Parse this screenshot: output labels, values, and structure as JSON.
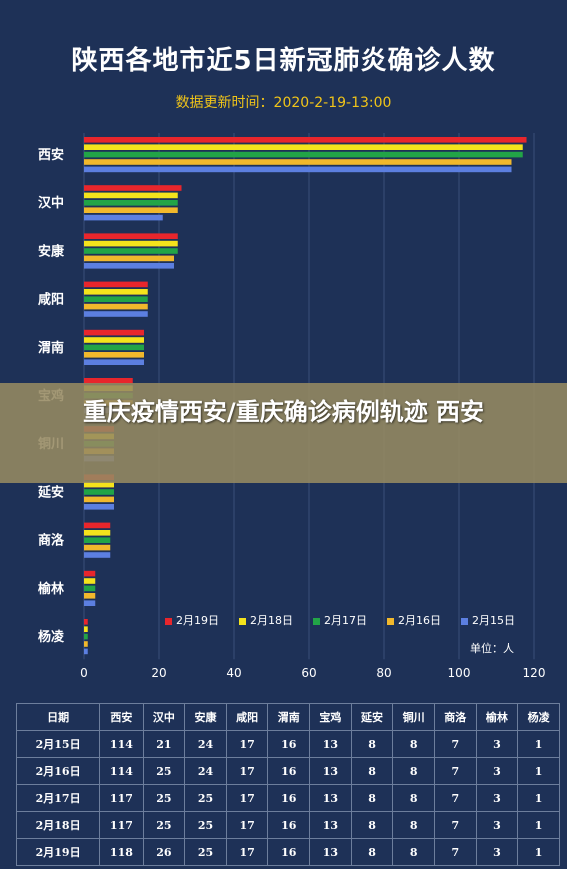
{
  "title": "陕西各地市近5日新冠肺炎确诊人数",
  "subtitle": "数据更新时间：2020-2-19-13:00",
  "overlay": {
    "text": "重庆疫情西安/重庆确诊病例轨迹 西安"
  },
  "unit_label": "单位：人",
  "colors": {
    "background": "#1e3157",
    "2月19日": "#e8262c",
    "2月18日": "#f4e31c",
    "2月17日": "#22a447",
    "2月16日": "#f1b82c",
    "2月15日": "#5c7fe0"
  },
  "chart_data": {
    "type": "bar",
    "orientation": "horizontal",
    "categories": [
      "西安",
      "汉中",
      "安康",
      "咸阳",
      "渭南",
      "宝鸡",
      "铜川",
      "延安",
      "商洛",
      "榆林",
      "杨凌"
    ],
    "series": [
      {
        "name": "2月19日",
        "values": [
          118,
          26,
          25,
          17,
          16,
          13,
          8,
          8,
          7,
          3,
          1
        ]
      },
      {
        "name": "2月18日",
        "values": [
          117,
          25,
          25,
          17,
          16,
          13,
          8,
          8,
          7,
          3,
          1
        ]
      },
      {
        "name": "2月17日",
        "values": [
          117,
          25,
          25,
          17,
          16,
          13,
          8,
          8,
          7,
          3,
          1
        ]
      },
      {
        "name": "2月16日",
        "values": [
          114,
          25,
          24,
          17,
          16,
          13,
          8,
          8,
          7,
          3,
          1
        ]
      },
      {
        "name": "2月15日",
        "values": [
          114,
          21,
          24,
          17,
          16,
          13,
          8,
          8,
          7,
          3,
          1
        ]
      }
    ],
    "xlim": [
      0,
      120
    ],
    "xticks": [
      0,
      20,
      40,
      60,
      80,
      100,
      120
    ],
    "grid": true,
    "legend_position": "bottom-right"
  },
  "table": {
    "headers": [
      "日期",
      "西安",
      "汉中",
      "安康",
      "咸阳",
      "渭南",
      "宝鸡",
      "延安",
      "铜川",
      "商洛",
      "榆林",
      "杨凌"
    ],
    "rows": [
      [
        "2月15日",
        "114",
        "21",
        "24",
        "17",
        "16",
        "13",
        "8",
        "8",
        "7",
        "3",
        "1"
      ],
      [
        "2月16日",
        "114",
        "25",
        "24",
        "17",
        "16",
        "13",
        "8",
        "8",
        "7",
        "3",
        "1"
      ],
      [
        "2月17日",
        "117",
        "25",
        "25",
        "17",
        "16",
        "13",
        "8",
        "8",
        "7",
        "3",
        "1"
      ],
      [
        "2月18日",
        "117",
        "25",
        "25",
        "17",
        "16",
        "13",
        "8",
        "8",
        "7",
        "3",
        "1"
      ],
      [
        "2月19日",
        "118",
        "26",
        "25",
        "17",
        "16",
        "13",
        "8",
        "8",
        "7",
        "3",
        "1"
      ]
    ]
  }
}
